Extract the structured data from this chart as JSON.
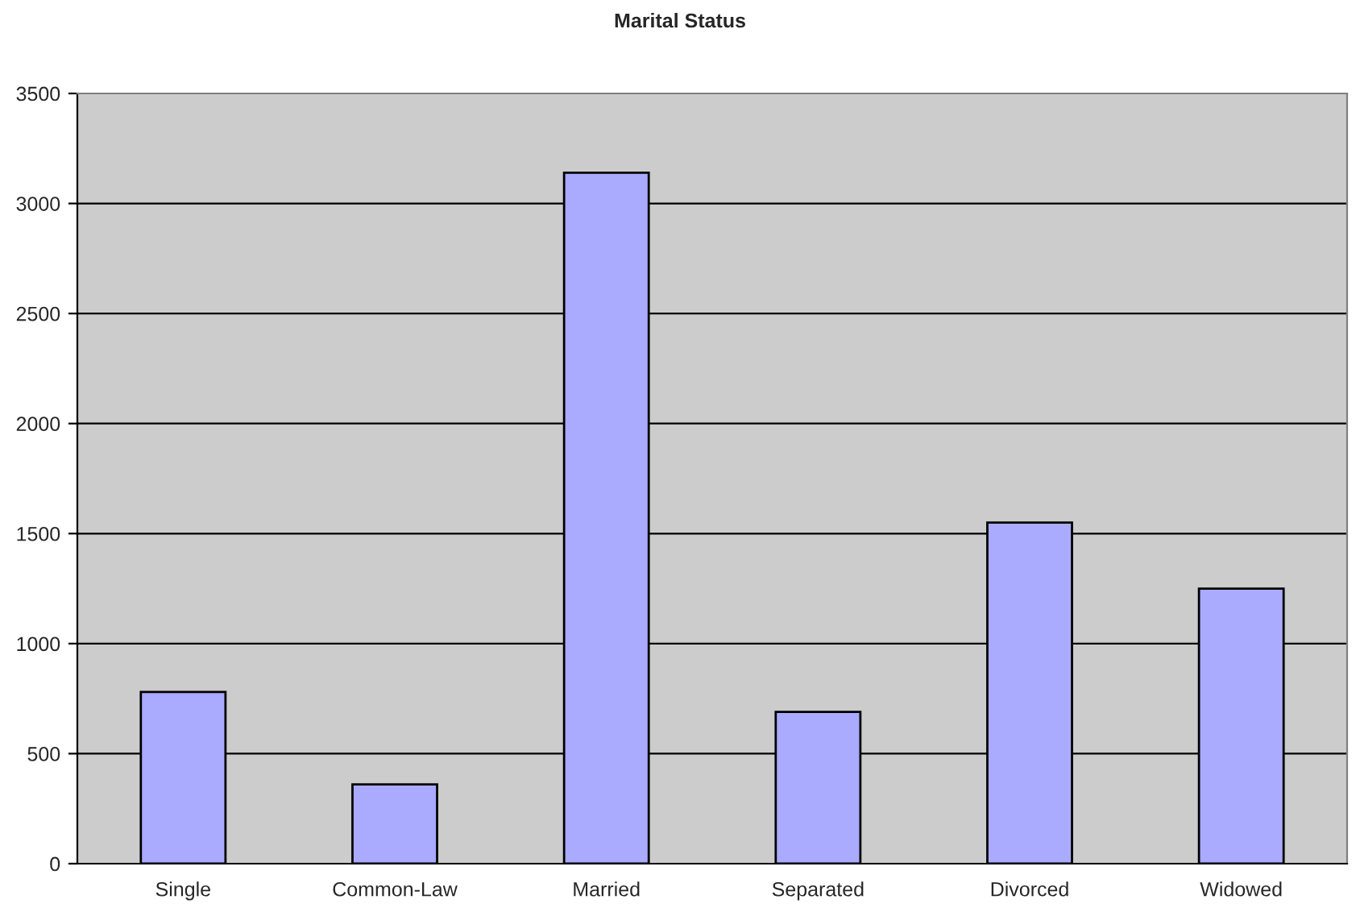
{
  "chart_data": {
    "type": "bar",
    "title": "Marital Status",
    "categories": [
      "Single",
      "Common-Law",
      "Married",
      "Separated",
      "Divorced",
      "Widowed"
    ],
    "values": [
      780,
      360,
      3140,
      690,
      1550,
      1250
    ],
    "color": "#aaaaff",
    "ylim": [
      0,
      3500
    ],
    "yticks": [
      0,
      500,
      1000,
      1500,
      2000,
      2500,
      3000,
      3500
    ],
    "grid": "y",
    "legend": false
  }
}
